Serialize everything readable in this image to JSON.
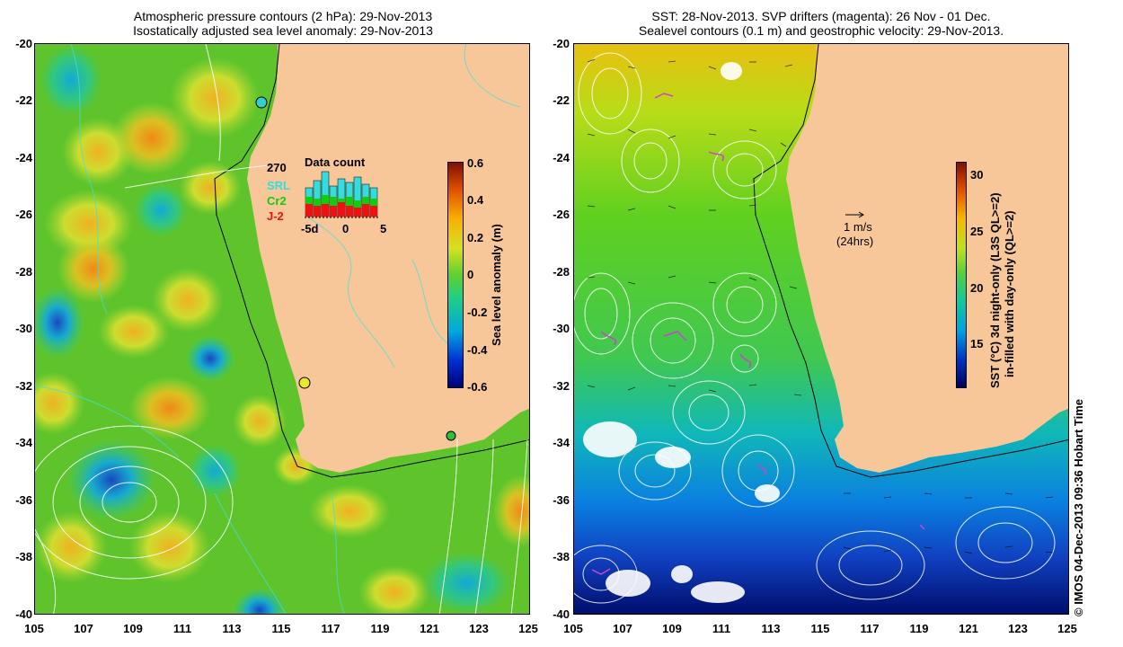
{
  "left_panel": {
    "title_line1": "Atmospheric pressure contours (2 hPa): 29-Nov-2013",
    "title_line2": "Isostatically adjusted sea level anomaly: 29-Nov-2013",
    "colorbar_label": "Sea level anomaly (m)",
    "colorbar_ticks": [
      "0.6",
      "0.4",
      "0.2",
      "0",
      "-0.2",
      "-0.4",
      "-0.6"
    ],
    "colorbar_range": [
      -0.6,
      0.6
    ],
    "data_count": {
      "title": "Data count",
      "max_label": "270",
      "satellites": [
        {
          "name": "SRL",
          "color": "#33dddd"
        },
        {
          "name": "Cr2",
          "color": "#11cc11"
        },
        {
          "name": "J-2",
          "color": "#ee1111"
        }
      ],
      "x_ticks": [
        "-5d",
        "0",
        "5"
      ]
    }
  },
  "right_panel": {
    "title_line1": "SST: 28-Nov-2013. SVP drifters (magenta): 26 Nov - 01 Dec.",
    "title_line2": "Sealevel contours (0.1 m) and geostrophic velocity: 29-Nov-2013.",
    "colorbar_label_line1": "SST (°C)  3d night-only (L3S QL>=2)",
    "colorbar_label_line2": "in-filled with day-only (QL>=2)",
    "colorbar_ticks": [
      "30",
      "25",
      "20",
      "15"
    ],
    "colorbar_range": [
      11,
      31
    ],
    "velocity_scale": {
      "label": "1 m/s",
      "sublabel": "(24hrs)"
    }
  },
  "map_axes": {
    "x_ticks": [
      "105",
      "107",
      "109",
      "111",
      "113",
      "115",
      "117",
      "119",
      "121",
      "123",
      "125"
    ],
    "y_ticks": [
      "-20",
      "-22",
      "-24",
      "-26",
      "-28",
      "-30",
      "-32",
      "-34",
      "-36",
      "-38",
      "-40"
    ],
    "lon_range": [
      105,
      125
    ],
    "lat_range": [
      -40,
      -20
    ]
  },
  "credit": "© IMOS 04-Dec-2013 09:36 Hobart Time",
  "colors": {
    "land": "#f7c799",
    "sla_base": "#5fc42c",
    "sst_base": "#4cc844"
  }
}
